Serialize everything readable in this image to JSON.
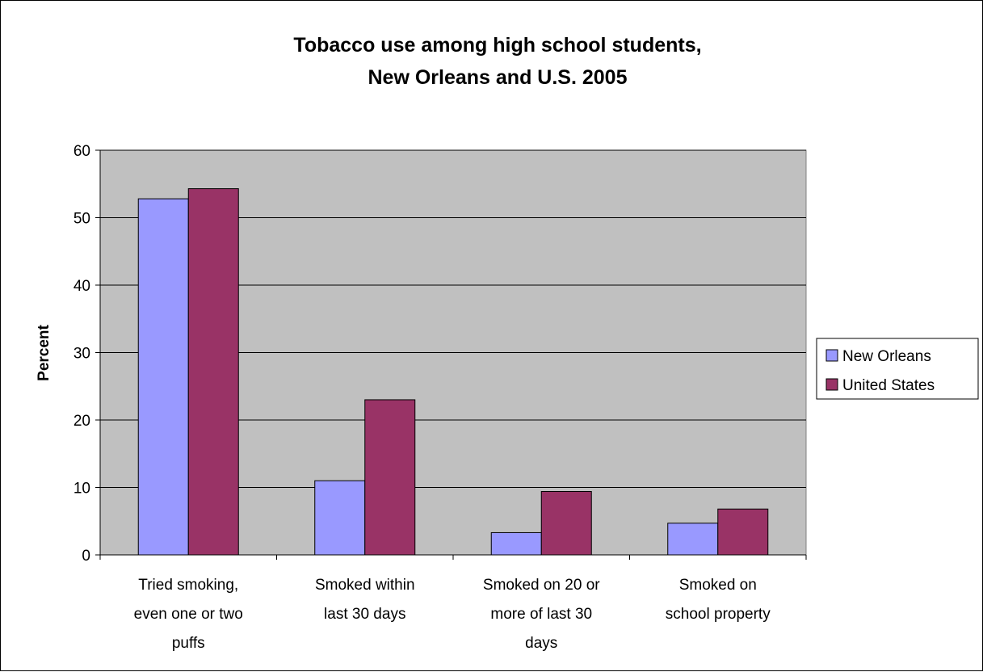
{
  "chart_data": {
    "type": "bar",
    "title": [
      "Tobacco use among high school students,",
      "New Orleans and U.S. 2005"
    ],
    "xlabel": "",
    "ylabel": "Percent",
    "ylim": [
      0,
      60
    ],
    "yticks": [
      "0",
      "10",
      "20",
      "30",
      "40",
      "50",
      "60"
    ],
    "grid": true,
    "legend_position": "right",
    "categories": [
      [
        "Tried smoking,",
        "even one or two",
        "puffs"
      ],
      [
        "Smoked within",
        "last 30 days"
      ],
      [
        "Smoked on 20 or",
        "more of last 30",
        "days"
      ],
      [
        "Smoked on",
        "school property"
      ]
    ],
    "series": [
      {
        "name": "New Orleans",
        "color": "#9999ff",
        "values": [
          52.8,
          11.0,
          3.3,
          4.7
        ]
      },
      {
        "name": "United States",
        "color": "#993366",
        "values": [
          54.3,
          23.0,
          9.4,
          6.8
        ]
      }
    ],
    "plot_background": "#c0c0c0"
  }
}
